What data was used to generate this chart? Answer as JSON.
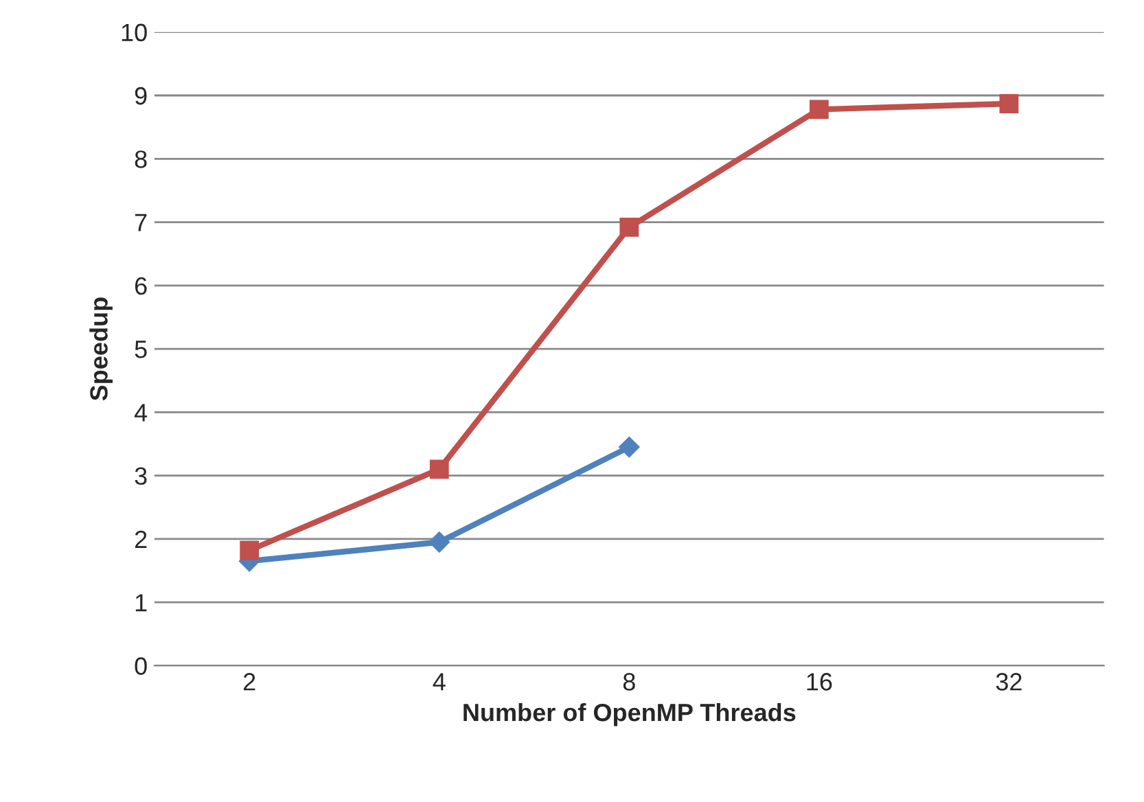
{
  "chart_data": {
    "type": "line",
    "xlabel": "Number of OpenMP Threads",
    "ylabel": "Speedup",
    "categories": [
      "2",
      "4",
      "8",
      "16",
      "32"
    ],
    "series": [
      {
        "color": "#4f81bd",
        "marker": "diamond",
        "values": [
          1.65,
          1.95,
          3.45,
          null,
          null
        ]
      },
      {
        "color": "#c0504d",
        "marker": "square",
        "values": [
          1.82,
          3.1,
          6.92,
          8.78,
          8.87
        ]
      }
    ],
    "ylim": [
      0,
      10
    ],
    "yticks": [
      0,
      1,
      2,
      3,
      4,
      5,
      6,
      7,
      8,
      9,
      10
    ],
    "grid": "y",
    "line_style": "solid"
  }
}
